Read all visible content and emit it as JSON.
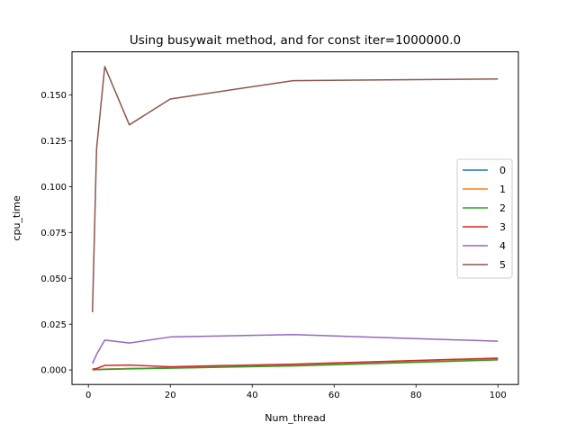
{
  "chart_data": {
    "type": "line",
    "title": "Using busywait method, and for const iter=1000000.0",
    "xlabel": "Num_thread",
    "ylabel": "cpu_time",
    "xlim": [
      -4,
      105
    ],
    "ylim": [
      -0.0079,
      0.1735
    ],
    "xticks": [
      0,
      20,
      40,
      60,
      80,
      100
    ],
    "xtick_labels": [
      "0",
      "20",
      "40",
      "60",
      "80",
      "100"
    ],
    "yticks": [
      0,
      0.025,
      0.05,
      0.075,
      0.1,
      0.125,
      0.15
    ],
    "ytick_labels": [
      "0.000",
      "0.025",
      "0.050",
      "0.075",
      "0.100",
      "0.125",
      "0.150"
    ],
    "grid": false,
    "legend_position": "center-right",
    "x": [
      1,
      2,
      4,
      10,
      20,
      50,
      100
    ],
    "series": [
      {
        "name": "0",
        "color": "#1f77b4",
        "values": [
          0.0002,
          0.0003,
          0.0005,
          0.0008,
          0.0012,
          0.0025,
          0.0058
        ]
      },
      {
        "name": "1",
        "color": "#ff7f0e",
        "values": [
          0.0002,
          0.0003,
          0.0004,
          0.0007,
          0.0011,
          0.0024,
          0.0057
        ]
      },
      {
        "name": "2",
        "color": "#2ca02c",
        "values": [
          0.0001,
          0.0002,
          0.0003,
          0.0006,
          0.001,
          0.0022,
          0.0055
        ]
      },
      {
        "name": "3",
        "color": "#d62728",
        "values": [
          0.0005,
          0.0008,
          0.0025,
          0.0027,
          0.0018,
          0.0032,
          0.0065
        ]
      },
      {
        "name": "4",
        "color": "#9467bd",
        "values": [
          0.0035,
          0.0085,
          0.0163,
          0.0147,
          0.018,
          0.0193,
          0.0157
        ]
      },
      {
        "name": "5",
        "color": "#8c564b",
        "values": [
          0.0315,
          0.1205,
          0.1655,
          0.1337,
          0.1478,
          0.1578,
          0.1587
        ]
      }
    ]
  }
}
